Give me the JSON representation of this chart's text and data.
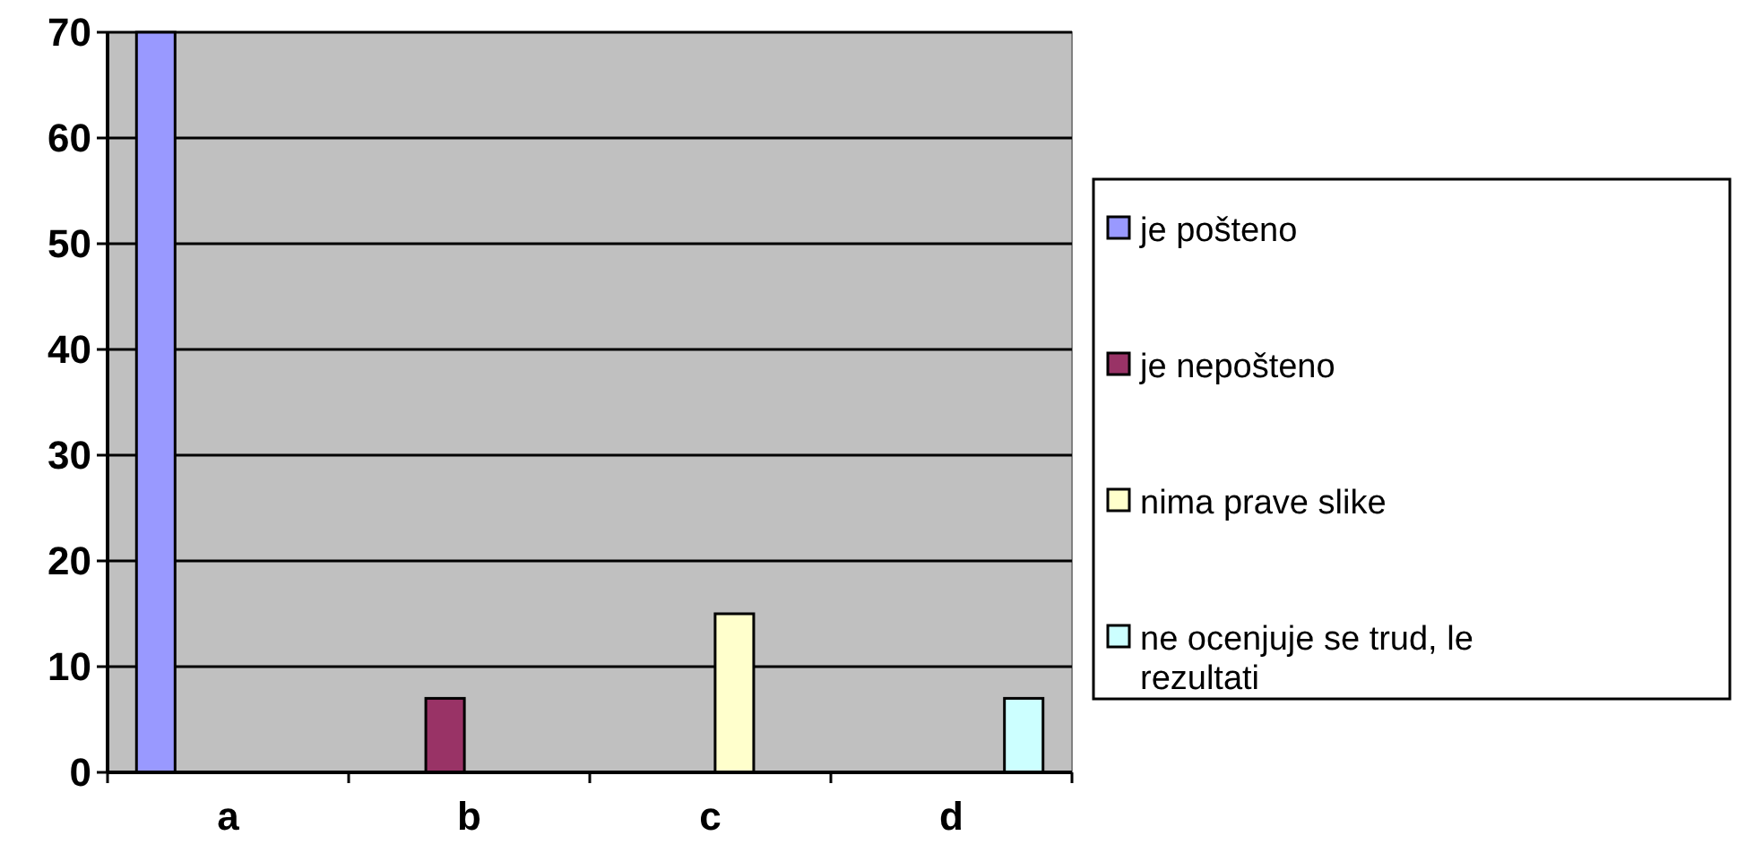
{
  "chart_data": {
    "type": "bar",
    "categories": [
      "a",
      "b",
      "c",
      "d"
    ],
    "series": [
      {
        "name": "je pošteno",
        "color": "#9999ff",
        "values": [
          70,
          null,
          null,
          null
        ]
      },
      {
        "name": "je nepošteno",
        "color": "#993366",
        "values": [
          null,
          7,
          null,
          null
        ]
      },
      {
        "name": "nima prave slike",
        "color": "#ffffcc",
        "values": [
          null,
          null,
          15,
          null
        ]
      },
      {
        "name": "ne ocenjuje se trud, le rezultati",
        "color": "#ccffff",
        "values": [
          null,
          null,
          null,
          7
        ]
      }
    ],
    "ylim": [
      0,
      70
    ],
    "yticks": [
      0,
      10,
      20,
      30,
      40,
      50,
      60,
      70
    ],
    "grid": "y",
    "legend": "right"
  }
}
